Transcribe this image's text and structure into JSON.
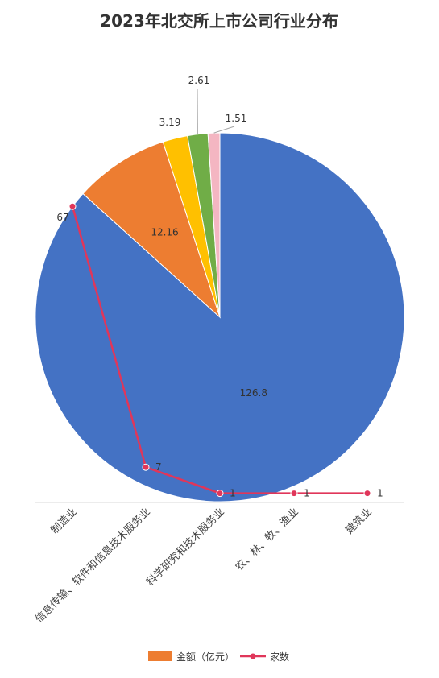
{
  "chart_data": {
    "type": "pie",
    "title": "2023年北交所上市公司行业分布",
    "categories": [
      "制造业",
      "信息传输、软件和信息技术服务业",
      "科学研究和技术服务业",
      "农、林、牧、渔业",
      "建筑业"
    ],
    "series": [
      {
        "name": "金额（亿元）",
        "type": "pie",
        "values": [
          126.8,
          12.16,
          3.19,
          2.61,
          1.51
        ],
        "colors": [
          "#4472C4",
          "#ED7D31",
          "#FFC000",
          "#70AD47",
          "#F4B6C2"
        ]
      },
      {
        "name": "家数",
        "type": "line",
        "values": [
          67,
          7,
          1,
          1,
          1
        ],
        "color": "#E0365A"
      }
    ],
    "line_ylim": [
      0,
      70
    ],
    "legend_position": "bottom",
    "grid": false
  }
}
